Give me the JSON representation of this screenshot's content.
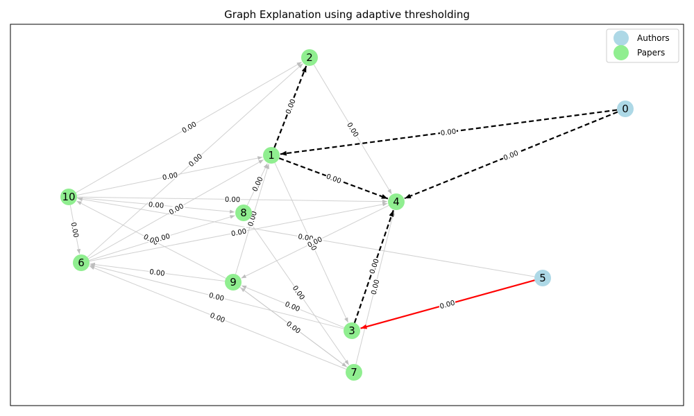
{
  "title": "Graph Explanation using adaptive thresholding",
  "legend": [
    {
      "label": "Authors",
      "color": "#add8e6"
    },
    {
      "label": "Papers",
      "color": "#90ee90"
    }
  ],
  "colors": {
    "author_node": "#add8e6",
    "paper_node": "#90ee90",
    "important_edge": "#000000",
    "highlight_edge": "#ff0000",
    "faint_edge": "#bbbbbb"
  },
  "nodes": [
    {
      "id": "0",
      "type": "author"
    },
    {
      "id": "1",
      "type": "paper"
    },
    {
      "id": "2",
      "type": "paper"
    },
    {
      "id": "3",
      "type": "paper"
    },
    {
      "id": "4",
      "type": "paper"
    },
    {
      "id": "5",
      "type": "author"
    },
    {
      "id": "6",
      "type": "paper"
    },
    {
      "id": "7",
      "type": "paper"
    },
    {
      "id": "8",
      "type": "paper"
    },
    {
      "id": "9",
      "type": "paper"
    },
    {
      "id": "10",
      "type": "paper"
    }
  ],
  "edges": [
    {
      "source": "0",
      "target": "1",
      "weight": "0.00",
      "style": "important"
    },
    {
      "source": "0",
      "target": "4",
      "weight": "0.00",
      "style": "important"
    },
    {
      "source": "1",
      "target": "2",
      "weight": "0.00",
      "style": "important"
    },
    {
      "source": "1",
      "target": "4",
      "weight": "0.00",
      "style": "important"
    },
    {
      "source": "3",
      "target": "4",
      "weight": "0.00",
      "style": "important"
    },
    {
      "source": "5",
      "target": "3",
      "weight": "0.00",
      "style": "highlight"
    },
    {
      "source": "2",
      "target": "4",
      "weight": "0.00",
      "style": "faint"
    },
    {
      "source": "6",
      "target": "2",
      "weight": "0.00",
      "style": "faint"
    },
    {
      "source": "10",
      "target": "2",
      "weight": "0.00",
      "style": "faint"
    },
    {
      "source": "10",
      "target": "1",
      "weight": "0.00",
      "style": "faint"
    },
    {
      "source": "6",
      "target": "1",
      "weight": "0.00",
      "style": "faint"
    },
    {
      "source": "1",
      "target": "3",
      "weight": "0.00",
      "style": "faint"
    },
    {
      "source": "10",
      "target": "6",
      "weight": "0.00",
      "style": "faint"
    },
    {
      "source": "10",
      "target": "8",
      "weight": "0.00",
      "style": "faint"
    },
    {
      "source": "10",
      "target": "4",
      "weight": "0.00",
      "style": "faint"
    },
    {
      "source": "5",
      "target": "10",
      "weight": "0.00",
      "style": "faint"
    },
    {
      "source": "9",
      "target": "10",
      "weight": "0.00",
      "style": "faint"
    },
    {
      "source": "6",
      "target": "8",
      "weight": "0.00",
      "style": "faint"
    },
    {
      "source": "6",
      "target": "4",
      "weight": "0.00",
      "style": "faint"
    },
    {
      "source": "9",
      "target": "6",
      "weight": "0.00",
      "style": "faint"
    },
    {
      "source": "3",
      "target": "6",
      "weight": "0.00",
      "style": "faint"
    },
    {
      "source": "7",
      "target": "6",
      "weight": "0.00",
      "style": "faint"
    },
    {
      "source": "8",
      "target": "1",
      "weight": "0.00",
      "style": "faint"
    },
    {
      "source": "9",
      "target": "1",
      "weight": "0.00",
      "style": "faint"
    },
    {
      "source": "4",
      "target": "9",
      "weight": "0.00",
      "style": "faint"
    },
    {
      "source": "3",
      "target": "9",
      "weight": "0.00",
      "style": "faint"
    },
    {
      "source": "7",
      "target": "9",
      "weight": "0.00",
      "style": "faint"
    },
    {
      "source": "9",
      "target": "7",
      "weight": "0.00",
      "style": "faint"
    },
    {
      "source": "8",
      "target": "7",
      "weight": "0.00",
      "style": "faint"
    },
    {
      "source": "7",
      "target": "4",
      "weight": "0.00",
      "style": "faint"
    }
  ]
}
